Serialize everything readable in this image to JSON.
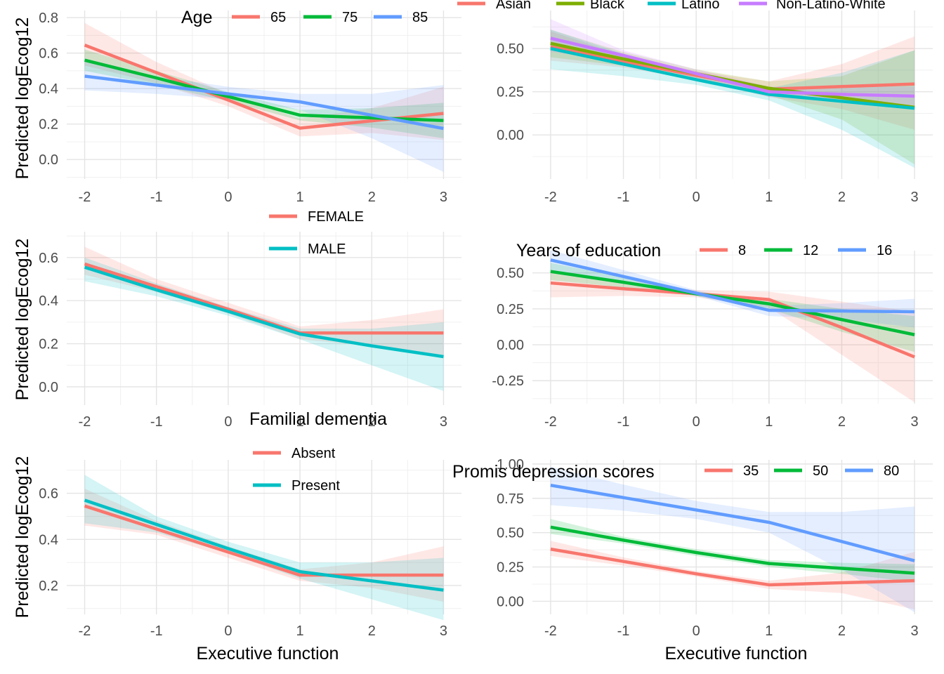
{
  "colors": {
    "red": "#F8766D",
    "green": "#00BA38",
    "blue": "#619CFF",
    "olive": "#7CAE00",
    "teal": "#00BFC4",
    "purple": "#C77CFF"
  },
  "chart_data": [
    {
      "type": "line",
      "ylabel": "Predicted logEcog12",
      "xlabel": "",
      "x": [
        -2,
        -1,
        0,
        1,
        2,
        3
      ],
      "xlim": [
        -2.25,
        3.25
      ],
      "ylim": [
        -0.11,
        0.84
      ],
      "yticks": [
        0.0,
        0.2,
        0.4,
        0.6,
        0.8
      ],
      "ytick_labels": [
        "0.0",
        "0.2",
        "0.4",
        "0.6",
        "0.8"
      ],
      "legend_title": "Age",
      "legend_layout": "horizontal",
      "series": [
        {
          "name": "65",
          "color": "red",
          "values": [
            0.645,
            0.49,
            0.335,
            0.177,
            0.218,
            0.26
          ],
          "lower": [
            0.53,
            0.43,
            0.3,
            0.13,
            0.15,
            0.11
          ],
          "upper": [
            0.77,
            0.55,
            0.37,
            0.23,
            0.29,
            0.41
          ]
        },
        {
          "name": "75",
          "color": "green",
          "values": [
            0.56,
            0.46,
            0.355,
            0.25,
            0.235,
            0.22
          ],
          "lower": [
            0.5,
            0.42,
            0.33,
            0.22,
            0.18,
            0.12
          ],
          "upper": [
            0.62,
            0.5,
            0.38,
            0.28,
            0.29,
            0.32
          ]
        },
        {
          "name": "85",
          "color": "blue",
          "values": [
            0.47,
            0.42,
            0.37,
            0.325,
            0.25,
            0.175
          ],
          "lower": [
            0.39,
            0.37,
            0.34,
            0.28,
            0.12,
            -0.07
          ],
          "upper": [
            0.55,
            0.47,
            0.41,
            0.37,
            0.37,
            0.42
          ]
        }
      ]
    },
    {
      "type": "line",
      "ylabel": "",
      "xlabel": "",
      "x": [
        -2,
        -1,
        0,
        1,
        2,
        3
      ],
      "xlim": [
        -2.25,
        3.25
      ],
      "ylim": [
        -0.255,
        0.72
      ],
      "yticks": [
        0.0,
        0.25,
        0.5
      ],
      "ytick_labels": [
        "0.00",
        "0.25",
        "0.50"
      ],
      "legend_title": "",
      "legend_layout": "horizontal",
      "series": [
        {
          "name": "Asian",
          "color": "red",
          "values": [
            0.51,
            0.425,
            0.345,
            0.265,
            0.28,
            0.295
          ],
          "lower": [
            0.43,
            0.39,
            0.32,
            0.22,
            0.15,
            0.03
          ],
          "upper": [
            0.6,
            0.46,
            0.37,
            0.31,
            0.41,
            0.57
          ]
        },
        {
          "name": "Black",
          "color": "olive",
          "values": [
            0.53,
            0.44,
            0.355,
            0.27,
            0.215,
            0.16
          ],
          "lower": [
            0.45,
            0.4,
            0.33,
            0.23,
            0.09,
            -0.17
          ],
          "upper": [
            0.61,
            0.48,
            0.38,
            0.31,
            0.34,
            0.49
          ]
        },
        {
          "name": "Latino",
          "color": "teal",
          "values": [
            0.5,
            0.41,
            0.32,
            0.235,
            0.195,
            0.155
          ],
          "lower": [
            0.38,
            0.34,
            0.29,
            0.2,
            0.03,
            -0.19
          ],
          "upper": [
            0.61,
            0.47,
            0.35,
            0.27,
            0.36,
            0.49
          ]
        },
        {
          "name": "Non-Latino-White",
          "color": "purple",
          "values": [
            0.56,
            0.46,
            0.355,
            0.25,
            0.235,
            0.225
          ],
          "lower": [
            0.48,
            0.43,
            0.33,
            0.22,
            0.19,
            0.17
          ],
          "upper": [
            0.67,
            0.49,
            0.38,
            0.28,
            0.28,
            0.28
          ]
        }
      ]
    },
    {
      "type": "line",
      "ylabel": "Predicted logEcog12",
      "xlabel": "",
      "x": [
        -2,
        -1,
        0,
        1,
        2,
        3
      ],
      "xlim": [
        -2.25,
        3.25
      ],
      "ylim": [
        -0.085,
        0.72
      ],
      "yticks": [
        0.0,
        0.2,
        0.4,
        0.6
      ],
      "ytick_labels": [
        "0.0",
        "0.2",
        "0.4",
        "0.6"
      ],
      "legend_title": "",
      "legend_layout": "vertical",
      "series": [
        {
          "name": "FEMALE",
          "color": "red",
          "values": [
            0.57,
            0.465,
            0.36,
            0.25,
            0.25,
            0.25
          ],
          "lower": [
            0.52,
            0.44,
            0.34,
            0.22,
            0.19,
            0.14
          ],
          "upper": [
            0.65,
            0.5,
            0.39,
            0.28,
            0.31,
            0.36
          ]
        },
        {
          "name": "MALE",
          "color": "teal",
          "values": [
            0.555,
            0.45,
            0.35,
            0.245,
            0.19,
            0.14
          ],
          "lower": [
            0.49,
            0.42,
            0.33,
            0.22,
            0.1,
            -0.02
          ],
          "upper": [
            0.6,
            0.48,
            0.37,
            0.27,
            0.27,
            0.3
          ]
        }
      ]
    },
    {
      "type": "line",
      "ylabel": "",
      "xlabel": "",
      "x": [
        -2,
        -1,
        0,
        1,
        2,
        3
      ],
      "xlim": [
        -2.25,
        3.25
      ],
      "ylim": [
        -0.41,
        0.655
      ],
      "yticks": [
        -0.25,
        0.0,
        0.25,
        0.5
      ],
      "ytick_labels": [
        "-0.25",
        "0.00",
        "0.25",
        "0.50"
      ],
      "legend_title": "Years of education",
      "legend_layout": "horizontal",
      "series": [
        {
          "name": "8",
          "color": "red",
          "values": [
            0.43,
            0.39,
            0.355,
            0.315,
            0.12,
            -0.085
          ],
          "lower": [
            0.33,
            0.34,
            0.33,
            0.26,
            -0.07,
            -0.4
          ],
          "upper": [
            0.52,
            0.44,
            0.38,
            0.37,
            0.3,
            0.23
          ]
        },
        {
          "name": "12",
          "color": "green",
          "values": [
            0.51,
            0.435,
            0.355,
            0.285,
            0.175,
            0.07
          ],
          "lower": [
            0.45,
            0.4,
            0.34,
            0.25,
            0.09,
            -0.05
          ],
          "upper": [
            0.57,
            0.47,
            0.37,
            0.32,
            0.25,
            0.2
          ]
        },
        {
          "name": "16",
          "color": "blue",
          "values": [
            0.59,
            0.475,
            0.36,
            0.24,
            0.235,
            0.23
          ],
          "lower": [
            0.5,
            0.43,
            0.34,
            0.2,
            0.18,
            0.12
          ],
          "upper": [
            0.66,
            0.52,
            0.38,
            0.27,
            0.29,
            0.32
          ]
        }
      ]
    },
    {
      "type": "line",
      "ylabel": "Predicted logEcog12",
      "xlabel": "Executive function",
      "x": [
        -2,
        -1,
        0,
        1,
        2,
        3
      ],
      "xlim": [
        -2.25,
        3.25
      ],
      "ylim": [
        0.075,
        0.745
      ],
      "yticks": [
        0.2,
        0.4,
        0.6
      ],
      "ytick_labels": [
        "0.2",
        "0.4",
        "0.6"
      ],
      "legend_title": "Familial dementia",
      "legend_layout": "vertical",
      "series": [
        {
          "name": "Absent",
          "color": "red",
          "values": [
            0.545,
            0.445,
            0.345,
            0.245,
            0.245,
            0.245
          ],
          "lower": [
            0.46,
            0.42,
            0.32,
            0.22,
            0.19,
            0.13
          ],
          "upper": [
            0.62,
            0.48,
            0.37,
            0.27,
            0.3,
            0.37
          ]
        },
        {
          "name": "Present",
          "color": "teal",
          "values": [
            0.57,
            0.465,
            0.36,
            0.26,
            0.22,
            0.18
          ],
          "lower": [
            0.47,
            0.43,
            0.34,
            0.23,
            0.14,
            0.05
          ],
          "upper": [
            0.68,
            0.5,
            0.39,
            0.3,
            0.3,
            0.32
          ]
        }
      ]
    },
    {
      "type": "line",
      "ylabel": "",
      "xlabel": "Executive function",
      "x": [
        -2,
        -1,
        0,
        1,
        2,
        3
      ],
      "xlim": [
        -2.25,
        3.25
      ],
      "ylim": [
        -0.095,
        1.03
      ],
      "yticks": [
        0.0,
        0.25,
        0.5,
        0.75,
        1.0
      ],
      "ytick_labels": [
        "0.00",
        "0.25",
        "0.50",
        "0.75",
        "1.00"
      ],
      "legend_title": "Promis depression scores",
      "legend_layout": "horizontal",
      "series": [
        {
          "name": "35",
          "color": "red",
          "values": [
            0.38,
            0.29,
            0.2,
            0.12,
            0.135,
            0.15
          ],
          "lower": [
            0.33,
            0.26,
            0.18,
            0.09,
            0.06,
            -0.06
          ],
          "upper": [
            0.44,
            0.32,
            0.22,
            0.15,
            0.21,
            0.36
          ]
        },
        {
          "name": "50",
          "color": "green",
          "values": [
            0.54,
            0.445,
            0.355,
            0.275,
            0.24,
            0.205
          ],
          "lower": [
            0.49,
            0.42,
            0.33,
            0.25,
            0.2,
            0.14
          ],
          "upper": [
            0.6,
            0.47,
            0.38,
            0.3,
            0.28,
            0.27
          ]
        },
        {
          "name": "80",
          "color": "blue",
          "values": [
            0.845,
            0.755,
            0.665,
            0.575,
            0.435,
            0.295
          ],
          "lower": [
            0.7,
            0.66,
            0.6,
            0.5,
            0.23,
            -0.08
          ],
          "upper": [
            0.98,
            0.85,
            0.73,
            0.65,
            0.65,
            0.69
          ]
        }
      ]
    }
  ]
}
